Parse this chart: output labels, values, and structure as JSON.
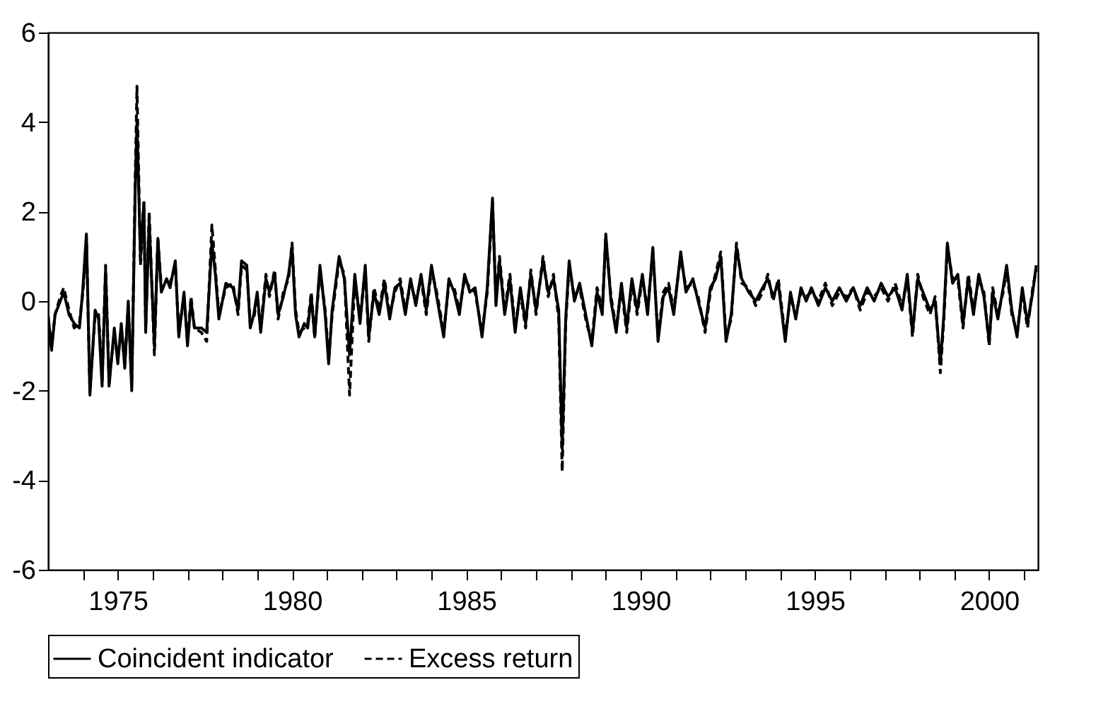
{
  "chart_data": {
    "type": "line",
    "legend": "bottom",
    "marker": "none",
    "grid": false,
    "xlim": [
      1973.0,
      2001.4
    ],
    "xticks": [
      {
        "value": 1974,
        "label": null
      },
      1975,
      {
        "value": 1976,
        "label": null
      },
      {
        "value": 1977,
        "label": null
      },
      {
        "value": 1978,
        "label": null
      },
      {
        "value": 1979,
        "label": null
      },
      1980,
      {
        "value": 1981,
        "label": null
      },
      {
        "value": 1982,
        "label": null
      },
      {
        "value": 1983,
        "label": null
      },
      {
        "value": 1984,
        "label": null
      },
      1985,
      {
        "value": 1986,
        "label": null
      },
      {
        "value": 1987,
        "label": null
      },
      {
        "value": 1988,
        "label": null
      },
      {
        "value": 1989,
        "label": null
      },
      1990,
      {
        "value": 1991,
        "label": null
      },
      {
        "value": 1992,
        "label": null
      },
      {
        "value": 1993,
        "label": null
      },
      {
        "value": 1994,
        "label": null
      },
      1995,
      {
        "value": 1996,
        "label": null
      },
      {
        "value": 1997,
        "label": null
      },
      {
        "value": 1998,
        "label": null
      },
      {
        "value": 1999,
        "label": null
      },
      2000,
      {
        "value": 2001,
        "label": null
      }
    ],
    "ylim": [
      -6,
      6
    ],
    "yticks": [
      -6,
      -4,
      -2,
      0,
      2,
      4,
      6
    ],
    "x": [
      1973.0,
      1973.1,
      1973.2,
      1973.35,
      1973.45,
      1973.6,
      1973.75,
      1973.9,
      1974.0,
      1974.1,
      1974.2,
      1974.35,
      1974.45,
      1974.55,
      1974.65,
      1974.75,
      1974.9,
      1975.0,
      1975.1,
      1975.2,
      1975.3,
      1975.4,
      1975.5,
      1975.55,
      1975.65,
      1975.75,
      1975.8,
      1975.9,
      1976.05,
      1976.15,
      1976.25,
      1976.4,
      1976.5,
      1976.65,
      1976.75,
      1976.9,
      1977.0,
      1977.1,
      1977.2,
      1977.4,
      1977.55,
      1977.7,
      1977.8,
      1977.9,
      1978.1,
      1978.3,
      1978.45,
      1978.55,
      1978.7,
      1978.8,
      1978.9,
      1979.0,
      1979.1,
      1979.25,
      1979.35,
      1979.5,
      1979.6,
      1979.75,
      1979.9,
      1980.0,
      1980.1,
      1980.2,
      1980.35,
      1980.45,
      1980.55,
      1980.65,
      1980.8,
      1980.95,
      1981.05,
      1981.15,
      1981.35,
      1981.5,
      1981.65,
      1981.8,
      1981.95,
      1982.1,
      1982.2,
      1982.35,
      1982.5,
      1982.65,
      1982.8,
      1982.95,
      1983.1,
      1983.25,
      1983.4,
      1983.55,
      1983.7,
      1983.85,
      1984.0,
      1984.15,
      1984.35,
      1984.5,
      1984.65,
      1984.8,
      1984.95,
      1985.1,
      1985.25,
      1985.45,
      1985.6,
      1985.75,
      1985.85,
      1985.95,
      1986.1,
      1986.25,
      1986.4,
      1986.55,
      1986.7,
      1986.85,
      1987.0,
      1987.2,
      1987.35,
      1987.5,
      1987.65,
      1987.75,
      1987.85,
      1987.95,
      1988.1,
      1988.25,
      1988.45,
      1988.6,
      1988.75,
      1988.9,
      1989.0,
      1989.15,
      1989.3,
      1989.45,
      1989.6,
      1989.75,
      1989.9,
      1990.05,
      1990.2,
      1990.35,
      1990.5,
      1990.65,
      1990.8,
      1990.95,
      1991.15,
      1991.3,
      1991.5,
      1991.65,
      1991.85,
      1992.0,
      1992.15,
      1992.3,
      1992.45,
      1992.6,
      1992.75,
      1992.9,
      1993.1,
      1993.3,
      1993.5,
      1993.65,
      1993.8,
      1993.95,
      1994.15,
      1994.3,
      1994.45,
      1994.6,
      1994.75,
      1994.9,
      1995.1,
      1995.3,
      1995.5,
      1995.7,
      1995.9,
      1996.1,
      1996.3,
      1996.5,
      1996.7,
      1996.9,
      1997.1,
      1997.3,
      1997.5,
      1997.65,
      1997.8,
      1997.95,
      1998.1,
      1998.3,
      1998.45,
      1998.6,
      1998.7,
      1998.8,
      1998.95,
      1999.1,
      1999.25,
      1999.4,
      1999.55,
      1999.7,
      1999.85,
      2000.0,
      2000.1,
      2000.25,
      2000.4,
      2000.5,
      2000.65,
      2000.8,
      2000.95,
      2001.1,
      2001.25,
      2001.35
    ],
    "series": [
      {
        "name": "Coincident indicator",
        "color": "#000000",
        "line_style": "solid",
        "values": [
          -0.3,
          -1.1,
          -0.3,
          0.0,
          0.2,
          -0.3,
          -0.5,
          -0.6,
          0.3,
          1.5,
          -2.1,
          -0.2,
          -0.4,
          -1.9,
          0.7,
          -1.9,
          -0.6,
          -1.4,
          -0.5,
          -1.5,
          0.0,
          -2.0,
          2.5,
          4.0,
          1.0,
          2.2,
          -0.7,
          1.8,
          -1.0,
          1.4,
          0.2,
          0.5,
          0.3,
          0.9,
          -0.8,
          0.2,
          -1.0,
          0.0,
          -0.6,
          -0.6,
          -0.7,
          1.3,
          0.6,
          -0.4,
          0.4,
          0.3,
          -0.2,
          0.9,
          0.8,
          -0.6,
          -0.3,
          0.2,
          -0.7,
          0.5,
          0.2,
          0.6,
          -0.3,
          0.1,
          0.6,
          1.2,
          -0.3,
          -0.8,
          -0.5,
          -0.6,
          0.1,
          -0.8,
          0.8,
          -0.3,
          -1.4,
          -0.2,
          1.0,
          0.5,
          -1.2,
          0.6,
          -0.5,
          0.8,
          -0.8,
          0.2,
          -0.3,
          0.4,
          -0.4,
          0.3,
          0.4,
          -0.3,
          0.5,
          -0.1,
          0.6,
          -0.2,
          0.8,
          0.1,
          -0.8,
          0.5,
          0.2,
          -0.3,
          0.6,
          0.2,
          0.3,
          -0.8,
          0.3,
          2.3,
          -0.1,
          0.9,
          -0.3,
          0.5,
          -0.7,
          0.3,
          -0.5,
          0.6,
          -0.2,
          0.9,
          0.2,
          0.5,
          -0.2,
          -3.3,
          -0.4,
          0.9,
          0.0,
          0.4,
          -0.4,
          -1.0,
          0.2,
          -0.3,
          1.5,
          0.0,
          -0.7,
          0.4,
          -0.6,
          0.5,
          -0.2,
          0.6,
          -0.3,
          1.2,
          -0.9,
          0.1,
          0.3,
          -0.3,
          1.1,
          0.2,
          0.5,
          0.0,
          -0.6,
          0.3,
          0.5,
          1.0,
          -0.9,
          -0.3,
          1.2,
          0.5,
          0.2,
          0.0,
          0.3,
          0.5,
          0.1,
          0.4,
          -0.9,
          0.2,
          -0.4,
          0.3,
          0.0,
          0.3,
          -0.1,
          0.3,
          0.0,
          0.3,
          0.0,
          0.3,
          -0.1,
          0.3,
          0.0,
          0.4,
          0.1,
          0.3,
          -0.2,
          0.6,
          -0.7,
          0.5,
          0.2,
          -0.2,
          0.0,
          -1.4,
          -0.3,
          1.3,
          0.4,
          0.6,
          -0.5,
          0.5,
          -0.3,
          0.6,
          0.1,
          -0.9,
          0.2,
          -0.4,
          0.3,
          0.8,
          -0.2,
          -0.8,
          0.3,
          -0.5,
          0.2,
          0.8
        ]
      },
      {
        "name": "Excess return",
        "color": "#000000",
        "line_style": "dashed",
        "values": [
          -0.4,
          -1.0,
          -0.3,
          0.1,
          0.3,
          -0.2,
          -0.6,
          -0.5,
          0.2,
          1.4,
          -2.0,
          -0.3,
          -0.3,
          -1.8,
          0.8,
          -1.8,
          -0.7,
          -1.3,
          -0.6,
          -1.4,
          -0.1,
          -1.9,
          2.7,
          4.8,
          0.8,
          2.2,
          -0.6,
          2.0,
          -1.2,
          1.4,
          0.3,
          0.4,
          0.4,
          0.8,
          -0.7,
          0.1,
          -0.9,
          0.1,
          -0.6,
          -0.7,
          -0.9,
          1.7,
          0.7,
          -0.3,
          0.3,
          0.4,
          -0.3,
          0.8,
          0.7,
          -0.5,
          -0.4,
          0.1,
          -0.6,
          0.6,
          0.1,
          0.7,
          -0.4,
          0.2,
          0.5,
          1.3,
          -0.2,
          -0.7,
          -0.6,
          -0.5,
          0.2,
          -0.8,
          0.7,
          -0.2,
          -1.3,
          -0.3,
          0.9,
          0.6,
          -2.1,
          0.5,
          -0.4,
          0.7,
          -0.9,
          0.3,
          -0.2,
          0.5,
          -0.3,
          0.2,
          0.5,
          -0.2,
          0.4,
          0.0,
          0.5,
          -0.3,
          0.7,
          0.2,
          -0.7,
          0.4,
          0.3,
          -0.2,
          0.5,
          0.3,
          0.2,
          -0.7,
          0.2,
          2.2,
          0.0,
          1.0,
          -0.2,
          0.6,
          -0.6,
          0.2,
          -0.6,
          0.7,
          -0.3,
          1.0,
          0.1,
          0.6,
          -0.4,
          -3.8,
          -0.5,
          0.8,
          0.1,
          0.3,
          -0.5,
          -0.9,
          0.3,
          -0.2,
          1.4,
          0.1,
          -0.6,
          0.3,
          -0.7,
          0.4,
          -0.3,
          0.5,
          -0.2,
          1.1,
          -0.8,
          0.2,
          0.4,
          -0.2,
          1.0,
          0.3,
          0.4,
          0.1,
          -0.7,
          0.2,
          0.6,
          1.1,
          -0.8,
          -0.4,
          1.3,
          0.4,
          0.3,
          -0.1,
          0.2,
          0.6,
          0.0,
          0.5,
          -0.8,
          0.1,
          -0.3,
          0.2,
          0.1,
          0.2,
          0.0,
          0.4,
          -0.1,
          0.2,
          0.1,
          0.3,
          -0.2,
          0.2,
          0.1,
          0.3,
          0.0,
          0.4,
          -0.1,
          0.5,
          -0.8,
          0.6,
          0.1,
          -0.3,
          0.1,
          -1.6,
          -0.4,
          1.2,
          0.5,
          0.5,
          -0.6,
          0.6,
          -0.2,
          0.5,
          0.2,
          -1.0,
          0.3,
          -0.3,
          0.2,
          0.7,
          -0.3,
          -0.7,
          0.2,
          -0.6,
          0.3,
          0.7
        ]
      }
    ]
  }
}
